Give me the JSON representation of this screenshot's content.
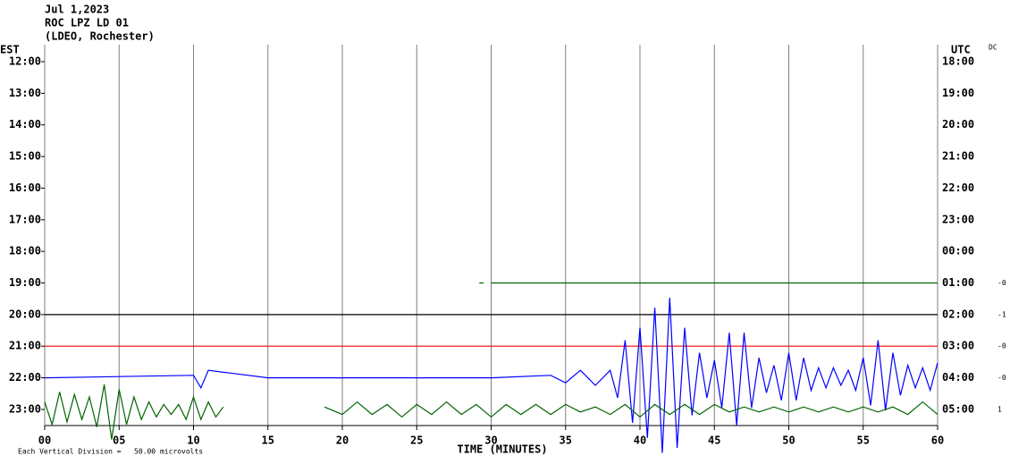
{
  "chart_data": {
    "type": "helicorder",
    "header": [
      "Jul 1,2023",
      "ROC LPZ LD 01",
      "(LDEO, Rochester)"
    ],
    "left_zone": "EST",
    "right_zone": "UTC",
    "right_corner": "DC",
    "xlabel": "TIME (MINUTES)",
    "scale_note": "Each Vertical Division =   50.00 microvolts",
    "xlim": [
      0,
      60
    ],
    "xticks": [
      {
        "value": 0,
        "label": "00"
      },
      {
        "value": 5,
        "label": "05"
      },
      10,
      15,
      20,
      25,
      30,
      35,
      40,
      45,
      50,
      55,
      60
    ],
    "rows": [
      "12:00",
      "13:00",
      "14:00",
      "15:00",
      "16:00",
      "17:00",
      "18:00",
      "19:00",
      "20:00",
      "21:00",
      "22:00",
      "23:00"
    ],
    "rows_right": [
      "18:00",
      "19:00",
      "20:00",
      "21:00",
      "22:00",
      "23:00",
      "00:00",
      "01:00",
      "02:00",
      "03:00",
      "04:00",
      "05:00"
    ],
    "rows_dc": [
      null,
      null,
      null,
      null,
      null,
      null,
      null,
      "-0",
      "-1",
      "-0",
      "-0",
      "1"
    ],
    "grid": true,
    "series": [
      {
        "row": 7,
        "color": "#006400",
        "x": [
          29.2,
          29.5,
          29.8,
          30,
          35,
          40,
          45,
          50,
          55,
          60
        ],
        "values": [
          0,
          0,
          null,
          0,
          0,
          0,
          0,
          0,
          0,
          0
        ]
      },
      {
        "row": 8,
        "color": "#000000",
        "x": [
          0,
          10,
          20,
          30,
          40,
          50,
          60
        ],
        "values": [
          0,
          0,
          0,
          0,
          0,
          0,
          0
        ]
      },
      {
        "row": 9,
        "color": "#ff0000",
        "x": [
          0,
          10,
          20,
          30,
          40,
          50,
          60
        ],
        "values": [
          0,
          0,
          0,
          0,
          0,
          0,
          0
        ]
      },
      {
        "row": 10,
        "color": "#0000ff",
        "x": [
          0,
          5,
          10,
          10.5,
          11,
          15,
          20,
          25,
          30,
          34,
          35,
          36,
          37,
          38,
          38.5,
          39,
          39.5,
          40,
          40.5,
          41,
          41.5,
          42,
          42.5,
          43,
          43.5,
          44,
          44.5,
          45,
          45.5,
          46,
          46.5,
          47,
          47.5,
          48,
          48.5,
          49,
          49.5,
          50,
          50.5,
          51,
          51.5,
          52,
          52.5,
          53,
          53.5,
          54,
          54.5,
          55,
          55.5,
          56,
          56.5,
          57,
          57.5,
          58,
          58.5,
          59,
          59.5,
          60
        ],
        "values": [
          0,
          0.05,
          0.1,
          -0.4,
          0.3,
          0,
          0,
          0,
          0,
          0.1,
          -0.2,
          0.3,
          -0.3,
          0.3,
          -0.8,
          1.5,
          -1.8,
          2,
          -2.4,
          2.8,
          -3,
          3.2,
          -2.8,
          2,
          -1.5,
          1,
          -0.8,
          0.7,
          -1.2,
          1.8,
          -1.9,
          1.8,
          -1.2,
          0.8,
          -0.6,
          0.5,
          -0.9,
          1,
          -0.9,
          0.8,
          -0.5,
          0.4,
          -0.4,
          0.4,
          -0.3,
          0.3,
          -0.5,
          0.8,
          -1.1,
          1.5,
          -1.3,
          1,
          -0.7,
          0.5,
          -0.4,
          0.4,
          -0.5,
          0.6
        ]
      },
      {
        "row": 11,
        "color": "#006400",
        "x": [
          0,
          0.5,
          1,
          1.5,
          2,
          2.5,
          3,
          3.5,
          4,
          4.5,
          5,
          5.5,
          6,
          6.5,
          7,
          7.5,
          8,
          8.5,
          9,
          9.5,
          10,
          10.5,
          11,
          11.5,
          12,
          15,
          18.8,
          20,
          21,
          22,
          23,
          24,
          25,
          26,
          27,
          28,
          29,
          30,
          31,
          32,
          33,
          34,
          35,
          36,
          37,
          38,
          39,
          40,
          41,
          42,
          43,
          44,
          45,
          46,
          47,
          48,
          49,
          50,
          51,
          52,
          53,
          54,
          55,
          56,
          57,
          58,
          59,
          60
        ],
        "values": [
          0.3,
          -0.6,
          0.7,
          -0.5,
          0.6,
          -0.4,
          0.5,
          -0.7,
          1,
          -1.2,
          0.8,
          -0.6,
          0.5,
          -0.4,
          0.3,
          -0.3,
          0.2,
          -0.2,
          0.2,
          -0.4,
          0.5,
          -0.4,
          0.3,
          -0.3,
          0.1,
          null,
          0.1,
          -0.2,
          0.3,
          -0.2,
          0.2,
          -0.3,
          0.2,
          -0.2,
          0.3,
          -0.2,
          0.2,
          -0.3,
          0.2,
          -0.2,
          0.2,
          -0.2,
          0.2,
          -0.1,
          0.1,
          -0.2,
          0.2,
          -0.3,
          0.2,
          -0.2,
          0.2,
          -0.2,
          0.2,
          -0.1,
          0.1,
          -0.1,
          0.1,
          -0.1,
          0.1,
          -0.1,
          0.1,
          -0.1,
          0.1,
          -0.1,
          0.1,
          -0.2,
          0.3,
          -0.2
        ]
      }
    ]
  }
}
